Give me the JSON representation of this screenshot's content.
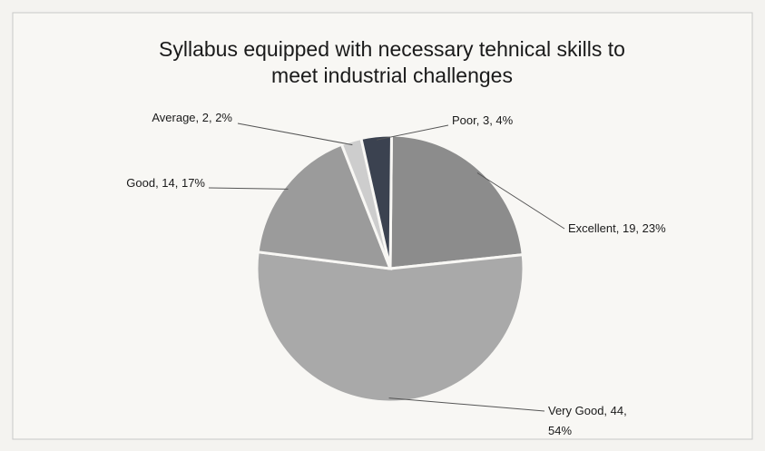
{
  "chart_data": {
    "type": "pie",
    "title": "Syllabus equipped with necessary tehnical skills to meet industrial challenges",
    "values": [
      19,
      44,
      14,
      2,
      3
    ],
    "value_labels": [
      "Excellent, 19, 23%",
      "Very Good, 44, 54%",
      "Good, 14, 17%",
      "Average, 2, 2%",
      "Poor, 3, 4%"
    ],
    "colors": [
      "#8c8c8c",
      "#a9a9a9",
      "#9b9b9b",
      "#cdcdcd",
      "#3b4250"
    ]
  }
}
